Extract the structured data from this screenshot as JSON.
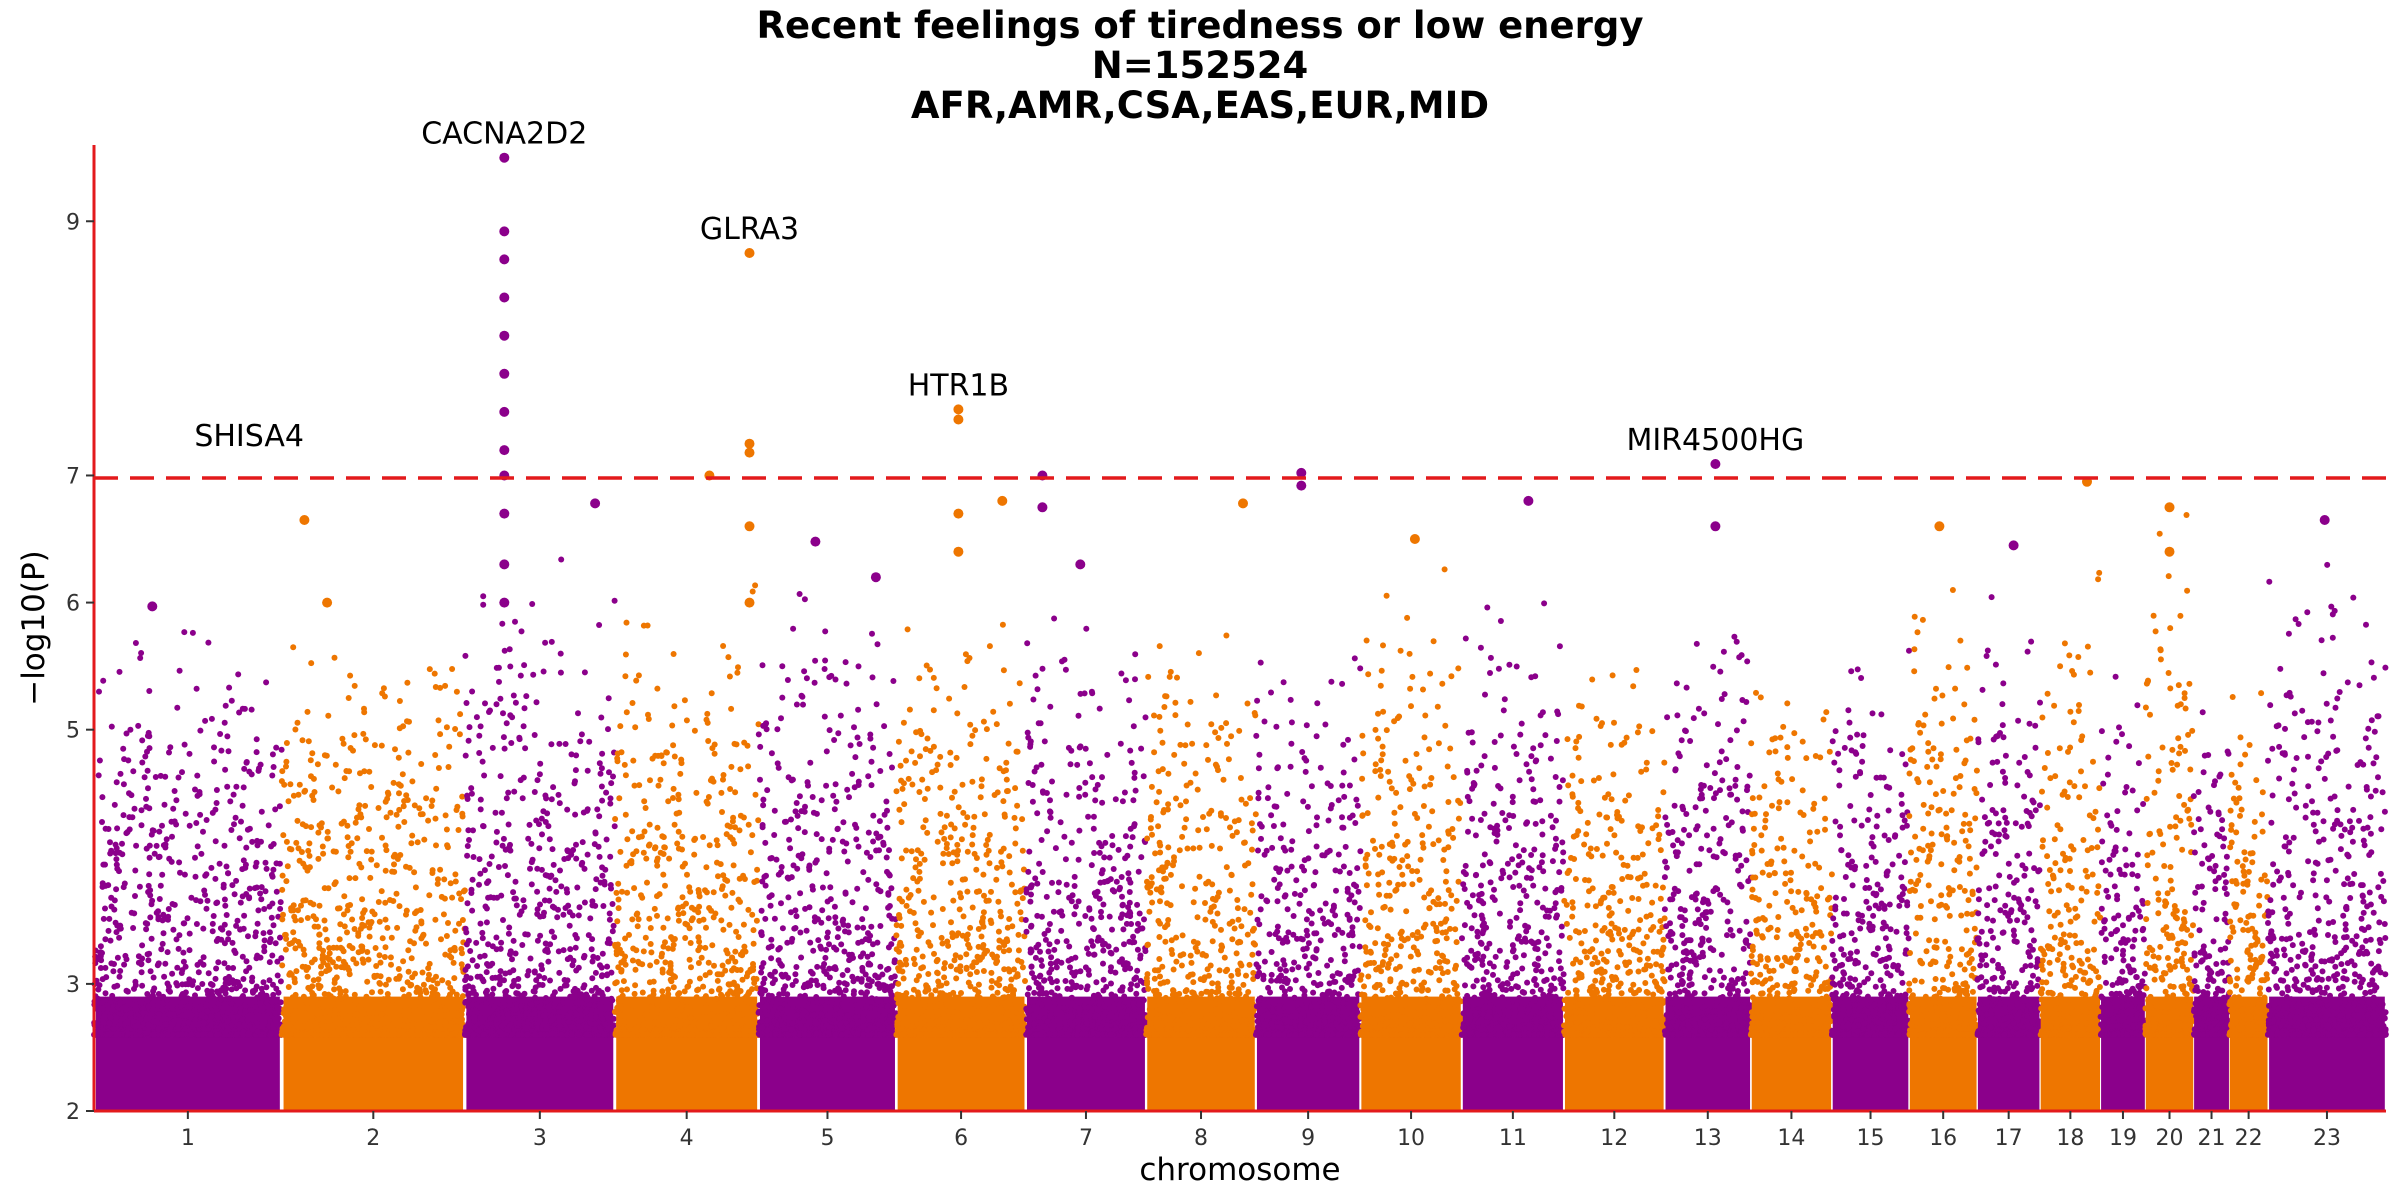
{
  "title": {
    "line1": "Recent feelings of tiredness or low energy",
    "line2": "N=152524",
    "line3": "AFR,AMR,CSA,EAS,EUR,MID"
  },
  "colors": {
    "odd_chromosome": "#8B008B",
    "even_chromosome": "#EE7600",
    "axis": "#E31A1C",
    "threshold": "#E31A1C"
  },
  "chart_data": {
    "type": "scatter",
    "subtype": "manhattan",
    "xlabel": "chromosome",
    "ylabel": "−log10(P)",
    "ylim": [
      2,
      9.6
    ],
    "yticks": [
      2,
      3,
      5,
      6,
      7,
      9
    ],
    "significance_threshold": 6.98,
    "chromosomes": [
      {
        "label": "1",
        "start": 0,
        "end": 248,
        "peak": 6.0,
        "hits": [
          [
            77,
            5.97
          ]
        ]
      },
      {
        "label": "2",
        "start": 248,
        "end": 490,
        "peak": 6.0,
        "hits": [
          [
            60,
            6.0
          ],
          [
            30,
            6.65
          ]
        ]
      },
      {
        "label": "3",
        "start": 490,
        "end": 688,
        "peak": 6.5,
        "hits": [
          [
            52,
            9.5
          ],
          [
            52,
            8.92
          ],
          [
            52,
            8.7
          ],
          [
            52,
            8.4
          ],
          [
            52,
            8.1
          ],
          [
            52,
            7.8
          ],
          [
            52,
            7.5
          ],
          [
            52,
            7.2
          ],
          [
            52,
            7.0
          ],
          [
            52,
            6.7
          ],
          [
            52,
            6.3
          ],
          [
            52,
            6.0
          ],
          [
            172,
            6.78
          ]
        ]
      },
      {
        "label": "4",
        "start": 688,
        "end": 878,
        "peak": 6.2,
        "hits": [
          [
            125,
            7.0
          ],
          [
            178,
            8.75
          ],
          [
            178,
            7.25
          ],
          [
            178,
            7.18
          ],
          [
            178,
            6.6
          ],
          [
            178,
            6.0
          ]
        ]
      },
      {
        "label": "5",
        "start": 878,
        "end": 1060,
        "peak": 6.25,
        "hits": [
          [
            75,
            6.48
          ],
          [
            155,
            6.2
          ]
        ]
      },
      {
        "label": "6",
        "start": 1060,
        "end": 1231,
        "peak": 6.2,
        "hits": [
          [
            82,
            7.52
          ],
          [
            82,
            7.44
          ],
          [
            82,
            6.7
          ],
          [
            82,
            6.4
          ],
          [
            140,
            6.8
          ]
        ]
      },
      {
        "label": "7",
        "start": 1231,
        "end": 1390,
        "peak": 6.1,
        "hits": [
          [
            22,
            7.0
          ],
          [
            22,
            6.75
          ],
          [
            72,
            6.3
          ]
        ]
      },
      {
        "label": "8",
        "start": 1390,
        "end": 1535,
        "peak": 5.9,
        "hits": [
          [
            128,
            6.78
          ]
        ]
      },
      {
        "label": "9",
        "start": 1535,
        "end": 1673,
        "peak": 5.8,
        "hits": [
          [
            60,
            7.02
          ],
          [
            60,
            6.92
          ]
        ]
      },
      {
        "label": "10",
        "start": 1673,
        "end": 1807,
        "peak": 6.3,
        "hits": [
          [
            72,
            6.5
          ]
        ]
      },
      {
        "label": "11",
        "start": 1807,
        "end": 1942,
        "peak": 6.1,
        "hits": [
          [
            88,
            6.8
          ]
        ]
      },
      {
        "label": "12",
        "start": 1942,
        "end": 2075,
        "peak": 5.8,
        "hits": []
      },
      {
        "label": "13",
        "start": 2075,
        "end": 2189,
        "peak": 6.3,
        "hits": [
          [
            67,
            7.09
          ],
          [
            67,
            6.6
          ]
        ]
      },
      {
        "label": "14",
        "start": 2189,
        "end": 2296,
        "peak": 5.6,
        "hits": []
      },
      {
        "label": "15",
        "start": 2296,
        "end": 2398,
        "peak": 6.05,
        "hits": []
      },
      {
        "label": "16",
        "start": 2398,
        "end": 2488,
        "peak": 6.25,
        "hits": [
          [
            40,
            6.6
          ]
        ]
      },
      {
        "label": "17",
        "start": 2488,
        "end": 2571,
        "peak": 6.45,
        "hits": [
          [
            48,
            6.45
          ]
        ]
      },
      {
        "label": "18",
        "start": 2571,
        "end": 2651,
        "peak": 6.3,
        "hits": [
          [
            62,
            6.95
          ]
        ]
      },
      {
        "label": "19",
        "start": 2651,
        "end": 2710,
        "peak": 5.6,
        "hits": []
      },
      {
        "label": "20",
        "start": 2710,
        "end": 2774,
        "peak": 6.75,
        "hits": [
          [
            32,
            6.75
          ],
          [
            32,
            6.4
          ]
        ]
      },
      {
        "label": "21",
        "start": 2774,
        "end": 2821,
        "peak": 5.5,
        "hits": []
      },
      {
        "label": "22",
        "start": 2821,
        "end": 2872,
        "peak": 5.6,
        "hits": []
      },
      {
        "label": "23",
        "start": 2872,
        "end": 3028,
        "peak": 6.65,
        "hits": [
          [
            75,
            6.65
          ]
        ]
      }
    ],
    "annotations": [
      {
        "label": "CACNA2D2",
        "chromosome": "3",
        "pos": 52,
        "y": 9.5
      },
      {
        "label": "GLRA3",
        "chromosome": "4",
        "pos": 178,
        "y": 8.75
      },
      {
        "label": "HTR1B",
        "chromosome": "6",
        "pos": 82,
        "y": 7.52
      },
      {
        "label": "SHISA4",
        "chromosome": "1",
        "pos": 205,
        "y": 7.12
      },
      {
        "label": "MIR4500HG",
        "chromosome": "13",
        "pos": 67,
        "y": 7.09
      }
    ]
  }
}
